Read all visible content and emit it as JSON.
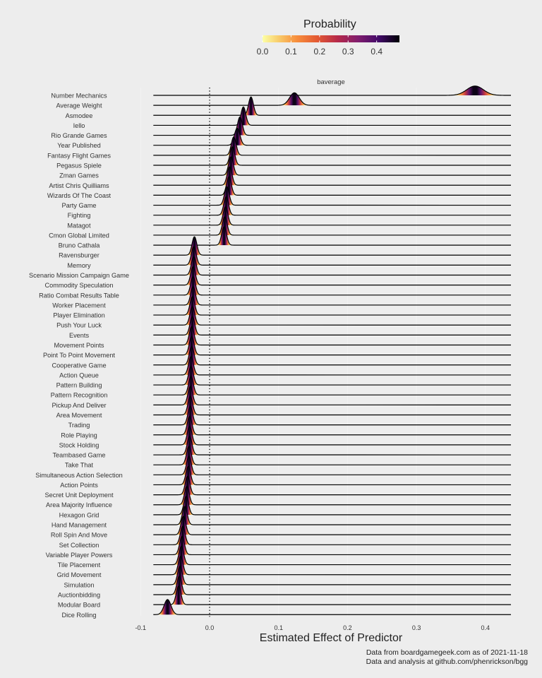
{
  "legend": {
    "title": "Probability",
    "ticks": [
      "0.0",
      "0.1",
      "0.2",
      "0.3",
      "0.4"
    ],
    "tick_values": [
      0.0,
      0.1,
      0.2,
      0.3,
      0.4
    ],
    "range": [
      0,
      0.48
    ],
    "colormap": "inferno-reversed"
  },
  "caption": {
    "line1": "Data from boardgamegeek.com as of 2021-11-18",
    "line2": "Data and analysis at github.com/phenrickson/bgg"
  },
  "chart_data": {
    "type": "ridgeline",
    "facet": "baverage",
    "xlabel": "Estimated Effect of Predictor",
    "ylabel": "",
    "xlim": [
      -0.1,
      0.44
    ],
    "x_ticks": [
      "-0.1",
      "0.0",
      "0.1",
      "0.2",
      "0.3",
      "0.4"
    ],
    "x_tick_values": [
      -0.1,
      0.0,
      0.1,
      0.2,
      0.3,
      0.4
    ],
    "reference_line": 0,
    "grid": true,
    "legend_position": "top",
    "colors": {
      "background": "#ededed",
      "ridge_line": "#000000",
      "reference_line": "#000000"
    },
    "predictors": [
      {
        "name": "Number Mechanics",
        "mean": 0.385,
        "sd": 0.012
      },
      {
        "name": "Average Weight",
        "mean": 0.123,
        "sd": 0.007
      },
      {
        "name": "Asmodee",
        "mean": 0.06,
        "sd": 0.0035
      },
      {
        "name": "Iello",
        "mean": 0.049,
        "sd": 0.0035
      },
      {
        "name": "Rio Grande Games",
        "mean": 0.044,
        "sd": 0.0035
      },
      {
        "name": "Year Published",
        "mean": 0.04,
        "sd": 0.004
      },
      {
        "name": "Fantasy Flight Games",
        "mean": 0.035,
        "sd": 0.0035
      },
      {
        "name": "Pegasus Spiele",
        "mean": 0.033,
        "sd": 0.0035
      },
      {
        "name": "Zman Games",
        "mean": 0.031,
        "sd": 0.0035
      },
      {
        "name": "Artist Chris Quilliams",
        "mean": 0.029,
        "sd": 0.0035
      },
      {
        "name": "Wizards Of The Coast",
        "mean": 0.028,
        "sd": 0.0035
      },
      {
        "name": "Party Game",
        "mean": 0.025,
        "sd": 0.0035
      },
      {
        "name": "Fighting",
        "mean": 0.024,
        "sd": 0.0035
      },
      {
        "name": "Matagot",
        "mean": 0.023,
        "sd": 0.0035
      },
      {
        "name": "Cmon Global Limited",
        "mean": 0.022,
        "sd": 0.0035
      },
      {
        "name": "Bruno Cathala",
        "mean": 0.021,
        "sd": 0.0035
      },
      {
        "name": "Ravensburger",
        "mean": -0.022,
        "sd": 0.0035
      },
      {
        "name": "Memory",
        "mean": -0.023,
        "sd": 0.0035
      },
      {
        "name": "Scenario Mission Campaign Game",
        "mean": -0.023,
        "sd": 0.0035
      },
      {
        "name": "Commodity Speculation",
        "mean": -0.024,
        "sd": 0.0035
      },
      {
        "name": "Ratio Combat Results Table",
        "mean": -0.024,
        "sd": 0.0035
      },
      {
        "name": "Worker Placement",
        "mean": -0.024,
        "sd": 0.0035
      },
      {
        "name": "Player Elimination",
        "mean": -0.025,
        "sd": 0.0035
      },
      {
        "name": "Push Your Luck",
        "mean": -0.025,
        "sd": 0.0035
      },
      {
        "name": "Events",
        "mean": -0.025,
        "sd": 0.0035
      },
      {
        "name": "Movement Points",
        "mean": -0.026,
        "sd": 0.0035
      },
      {
        "name": "Point To Point Movement",
        "mean": -0.026,
        "sd": 0.0035
      },
      {
        "name": "Cooperative Game",
        "mean": -0.026,
        "sd": 0.0035
      },
      {
        "name": "Action Queue",
        "mean": -0.027,
        "sd": 0.0035
      },
      {
        "name": "Pattern Building",
        "mean": -0.027,
        "sd": 0.0035
      },
      {
        "name": "Pattern Recognition",
        "mean": -0.027,
        "sd": 0.0035
      },
      {
        "name": "Pickup And Deliver",
        "mean": -0.028,
        "sd": 0.0035
      },
      {
        "name": "Area Movement",
        "mean": -0.028,
        "sd": 0.0035
      },
      {
        "name": "Trading",
        "mean": -0.028,
        "sd": 0.0035
      },
      {
        "name": "Role Playing",
        "mean": -0.029,
        "sd": 0.0035
      },
      {
        "name": "Stock Holding",
        "mean": -0.029,
        "sd": 0.0035
      },
      {
        "name": "Teambased Game",
        "mean": -0.029,
        "sd": 0.0035
      },
      {
        "name": "Take That",
        "mean": -0.03,
        "sd": 0.0035
      },
      {
        "name": "Simultaneous Action Selection",
        "mean": -0.03,
        "sd": 0.0035
      },
      {
        "name": "Action Points",
        "mean": -0.031,
        "sd": 0.0035
      },
      {
        "name": "Secret Unit Deployment",
        "mean": -0.032,
        "sd": 0.0035
      },
      {
        "name": "Area Majority Influence",
        "mean": -0.033,
        "sd": 0.0035
      },
      {
        "name": "Hexagon Grid",
        "mean": -0.034,
        "sd": 0.0035
      },
      {
        "name": "Hand Management",
        "mean": -0.036,
        "sd": 0.0035
      },
      {
        "name": "Roll Spin And Move",
        "mean": -0.038,
        "sd": 0.0035
      },
      {
        "name": "Set Collection",
        "mean": -0.039,
        "sd": 0.0035
      },
      {
        "name": "Variable Player Powers",
        "mean": -0.04,
        "sd": 0.0035
      },
      {
        "name": "Tile Placement",
        "mean": -0.041,
        "sd": 0.0035
      },
      {
        "name": "Grid Movement",
        "mean": -0.042,
        "sd": 0.0035
      },
      {
        "name": "Simulation",
        "mean": -0.043,
        "sd": 0.0035
      },
      {
        "name": "Auctionbidding",
        "mean": -0.044,
        "sd": 0.0035
      },
      {
        "name": "Modular Board",
        "mean": -0.045,
        "sd": 0.0035
      },
      {
        "name": "Dice Rolling",
        "mean": -0.061,
        "sd": 0.005
      }
    ]
  }
}
